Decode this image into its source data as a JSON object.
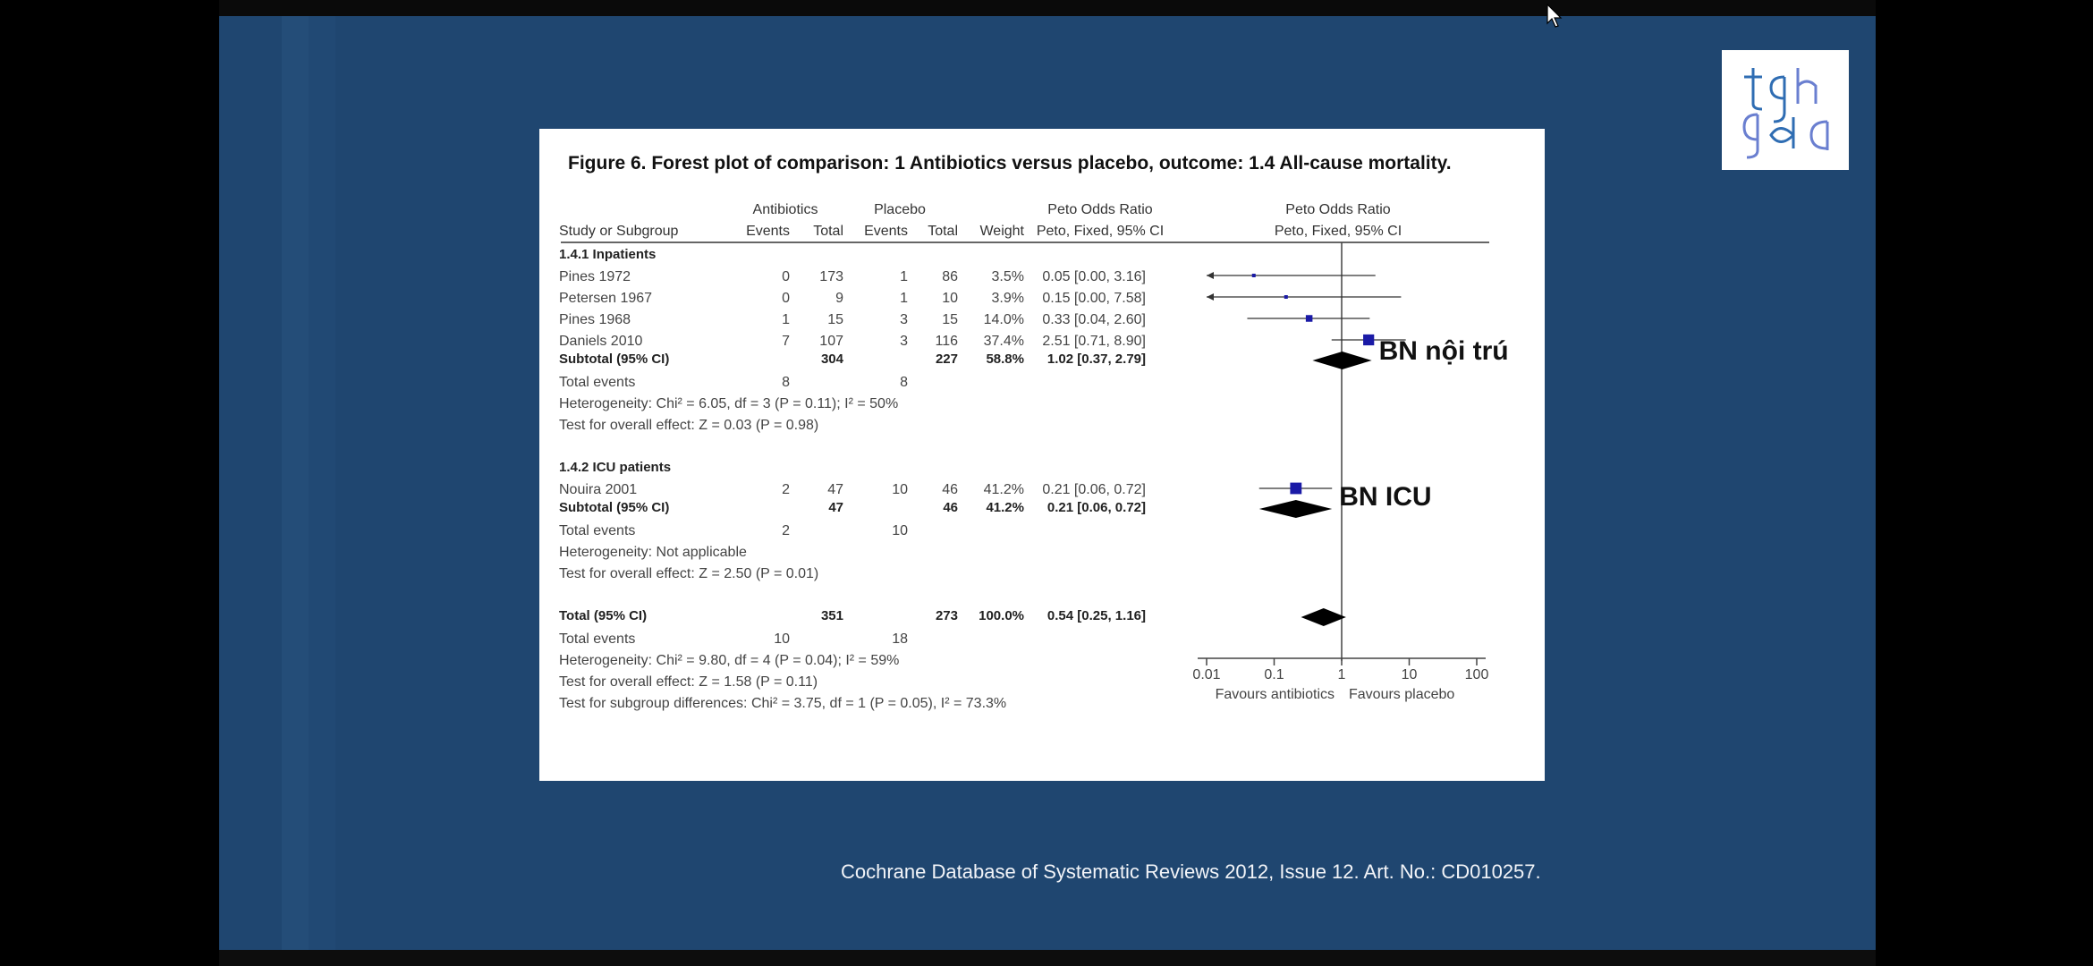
{
  "slide": {
    "citation": "Cochrane Database of Systematic Reviews 2012, Issue 12. Art. No.: CD010257.",
    "logo_text": "tgh gda",
    "annotations": [
      "BN nội trú",
      "BN ICU"
    ]
  },
  "chart_data": {
    "type": "forest",
    "title": "Figure 6.   Forest plot of comparison: 1 Antibiotics versus placebo, outcome: 1.4 All-cause mortality.",
    "columns": {
      "group1": "Antibiotics",
      "group2": "Placebo",
      "study": "Study or Subgroup",
      "events": "Events",
      "total": "Total",
      "weight": "Weight",
      "effect_header": "Peto Odds Ratio",
      "effect_sub": "Peto, Fixed, 95% CI"
    },
    "subgroups": [
      {
        "name": "1.4.1 Inpatients",
        "studies": [
          {
            "study": "Pines 1972",
            "ab_events": "0",
            "ab_total": "173",
            "pl_events": "1",
            "pl_total": "86",
            "weight": "3.5%",
            "ci_text": "0.05 [0.00, 3.16]",
            "or": 0.05,
            "lo": 0.001,
            "hi": 3.16,
            "w": 3.5
          },
          {
            "study": "Petersen 1967",
            "ab_events": "0",
            "ab_total": "9",
            "pl_events": "1",
            "pl_total": "10",
            "weight": "3.9%",
            "ci_text": "0.15 [0.00, 7.58]",
            "or": 0.15,
            "lo": 0.001,
            "hi": 7.58,
            "w": 3.9
          },
          {
            "study": "Pines 1968",
            "ab_events": "1",
            "ab_total": "15",
            "pl_events": "3",
            "pl_total": "15",
            "weight": "14.0%",
            "ci_text": "0.33 [0.04, 2.60]",
            "or": 0.33,
            "lo": 0.04,
            "hi": 2.6,
            "w": 14.0
          },
          {
            "study": "Daniels 2010",
            "ab_events": "7",
            "ab_total": "107",
            "pl_events": "3",
            "pl_total": "116",
            "weight": "37.4%",
            "ci_text": "2.51 [0.71, 8.90]",
            "or": 2.51,
            "lo": 0.71,
            "hi": 8.9,
            "w": 37.4
          }
        ],
        "subtotal": {
          "label": "Subtotal (95% CI)",
          "ab_total": "304",
          "pl_total": "227",
          "weight": "58.8%",
          "ci_text": "1.02 [0.37, 2.79]",
          "or": 1.02,
          "lo": 0.37,
          "hi": 2.79
        },
        "total_events": {
          "label": "Total events",
          "ab": "8",
          "pl": "8"
        },
        "heterogeneity": "Heterogeneity: Chi² = 6.05, df = 3 (P = 0.11); I² = 50%",
        "overall_effect": "Test for overall effect: Z = 0.03 (P = 0.98)"
      },
      {
        "name": "1.4.2 ICU patients",
        "studies": [
          {
            "study": "Nouira 2001",
            "ab_events": "2",
            "ab_total": "47",
            "pl_events": "10",
            "pl_total": "46",
            "weight": "41.2%",
            "ci_text": "0.21 [0.06, 0.72]",
            "or": 0.21,
            "lo": 0.06,
            "hi": 0.72,
            "w": 41.2
          }
        ],
        "subtotal": {
          "label": "Subtotal (95% CI)",
          "ab_total": "47",
          "pl_total": "46",
          "weight": "41.2%",
          "ci_text": "0.21 [0.06, 0.72]",
          "or": 0.21,
          "lo": 0.06,
          "hi": 0.72
        },
        "total_events": {
          "label": "Total events",
          "ab": "2",
          "pl": "10"
        },
        "heterogeneity": "Heterogeneity: Not applicable",
        "overall_effect": "Test for overall effect: Z = 2.50 (P = 0.01)"
      }
    ],
    "total": {
      "label": "Total (95% CI)",
      "ab_total": "351",
      "pl_total": "273",
      "weight": "100.0%",
      "ci_text": "0.54 [0.25, 1.16]",
      "or": 0.54,
      "lo": 0.25,
      "hi": 1.16
    },
    "total_events": {
      "label": "Total events",
      "ab": "10",
      "pl": "18"
    },
    "heterogeneity": "Heterogeneity: Chi² = 9.80, df = 4 (P = 0.04); I² = 59%",
    "overall_effect": "Test for overall effect: Z = 1.58 (P = 0.11)",
    "subgroup_diff": "Test for subgroup differences: Chi² = 3.75, df = 1 (P = 0.05), I² = 73.3%",
    "axis": {
      "scale": "log",
      "ticks": [
        0.01,
        0.1,
        1,
        10,
        100
      ],
      "tick_labels": [
        "0.01",
        "0.1",
        "1",
        "10",
        "100"
      ],
      "xlim": [
        0.01,
        100
      ]
    },
    "favours_left": "Favours antibiotics",
    "favours_right": "Favours placebo",
    "colors": {
      "study_marker": "#1a1aa6",
      "diamond": "#000000"
    }
  }
}
